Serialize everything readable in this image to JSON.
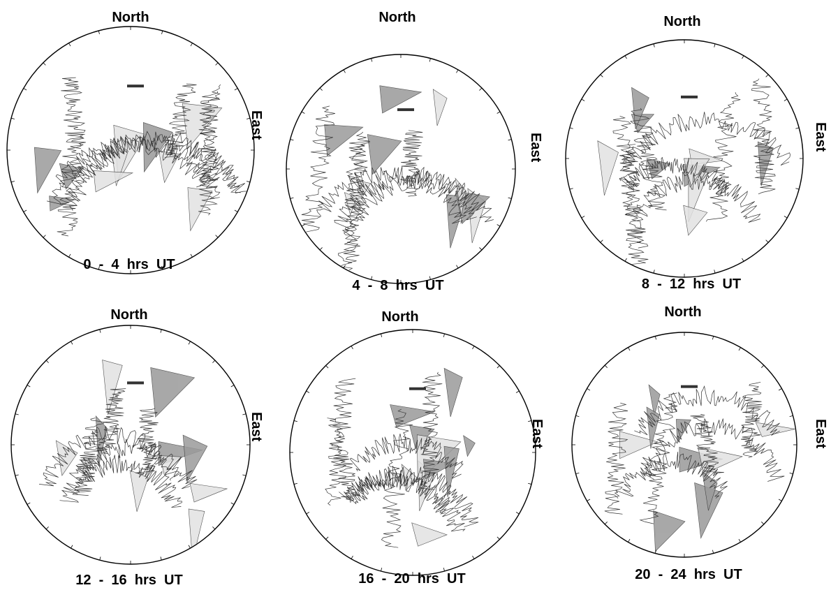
{
  "figure": {
    "panels": [
      {
        "north": "North",
        "east": "East",
        "time": "0  -  4  hrs  UT"
      },
      {
        "north": "North",
        "east": "East",
        "time": "4  -  8  hrs  UT"
      },
      {
        "north": "North",
        "east": "East",
        "time": "8  -  12  hrs  UT"
      },
      {
        "north": "North",
        "east": "East",
        "time": "12  -  16  hrs  UT"
      },
      {
        "north": "North",
        "east": "East",
        "time": "16  -  20  hrs  UT"
      },
      {
        "north": "North",
        "east": "East",
        "time": "20  -  24  hrs  UT"
      }
    ],
    "colors": {
      "circle": "#000000",
      "trace": "#333333",
      "fill_dark": "#9a9a9a",
      "fill_light": "#e2e2e2",
      "scale_bar": "#333333"
    }
  }
}
